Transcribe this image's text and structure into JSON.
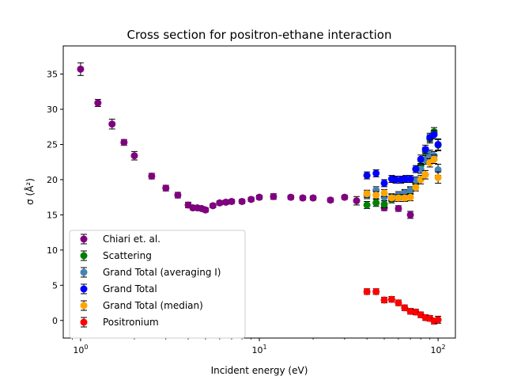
{
  "chart_data": {
    "type": "scatter",
    "title": "Cross section for positron-ethane interaction",
    "xlabel": "Incident energy (eV)",
    "ylabel": "σ  (Å²)",
    "xscale": "log",
    "xlim": [
      0.8,
      125
    ],
    "ylim": [
      -2.5,
      39
    ],
    "x_ticks": [
      {
        "value": 1,
        "base": "10",
        "exp": "0"
      },
      {
        "value": 10,
        "base": "10",
        "exp": "1"
      },
      {
        "value": 100,
        "base": "10",
        "exp": "2"
      }
    ],
    "y_ticks": [
      0,
      5,
      10,
      15,
      20,
      25,
      30,
      35
    ],
    "grid": false,
    "legend_position": "lower-left",
    "series": [
      {
        "name": "Chiari et. al.",
        "color": "#800080",
        "points": [
          {
            "x": 1.0,
            "y": 35.7,
            "err": 0.9
          },
          {
            "x": 1.25,
            "y": 30.9,
            "err": 0.5
          },
          {
            "x": 1.5,
            "y": 27.9,
            "err": 0.7
          },
          {
            "x": 1.75,
            "y": 25.3,
            "err": 0.4
          },
          {
            "x": 2.0,
            "y": 23.4,
            "err": 0.6
          },
          {
            "x": 2.5,
            "y": 20.5,
            "err": 0.4
          },
          {
            "x": 3.0,
            "y": 18.8,
            "err": 0.4
          },
          {
            "x": 3.5,
            "y": 17.8,
            "err": 0.4
          },
          {
            "x": 4.0,
            "y": 16.4,
            "err": 0.4
          },
          {
            "x": 4.25,
            "y": 16.0,
            "err": 0.3
          },
          {
            "x": 4.5,
            "y": 16.0,
            "err": 0.3
          },
          {
            "x": 4.75,
            "y": 15.9,
            "err": 0.3
          },
          {
            "x": 5.0,
            "y": 15.7,
            "err": 0.3
          },
          {
            "x": 5.5,
            "y": 16.3,
            "err": 0.3
          },
          {
            "x": 6.0,
            "y": 16.7,
            "err": 0.3
          },
          {
            "x": 6.5,
            "y": 16.8,
            "err": 0.3
          },
          {
            "x": 7.0,
            "y": 16.9,
            "err": 0.3
          },
          {
            "x": 8.0,
            "y": 16.9,
            "err": 0.3
          },
          {
            "x": 9.0,
            "y": 17.2,
            "err": 0.3
          },
          {
            "x": 10.0,
            "y": 17.5,
            "err": 0.3
          },
          {
            "x": 12.0,
            "y": 17.6,
            "err": 0.4
          },
          {
            "x": 15.0,
            "y": 17.5,
            "err": 0.3
          },
          {
            "x": 17.5,
            "y": 17.4,
            "err": 0.3
          },
          {
            "x": 20.0,
            "y": 17.4,
            "err": 0.3
          },
          {
            "x": 25.0,
            "y": 17.1,
            "err": 0.3
          },
          {
            "x": 30.0,
            "y": 17.5,
            "err": 0.3
          },
          {
            "x": 35.0,
            "y": 17.0,
            "err": 0.6
          },
          {
            "x": 50.0,
            "y": 16.0,
            "err": 0.4
          },
          {
            "x": 60.0,
            "y": 15.9,
            "err": 0.4
          },
          {
            "x": 70.0,
            "y": 15.0,
            "err": 0.5
          }
        ]
      },
      {
        "name": "Scattering",
        "color": "#008000",
        "points": [
          {
            "x": 40,
            "y": 16.4,
            "err": 0.5
          },
          {
            "x": 45,
            "y": 16.7,
            "err": 0.5
          },
          {
            "x": 50,
            "y": 16.5,
            "err": 0.5
          },
          {
            "x": 55,
            "y": 17.2,
            "err": 0.5
          },
          {
            "x": 60,
            "y": 17.6,
            "err": 0.5
          },
          {
            "x": 65,
            "y": 18.0,
            "err": 0.5
          },
          {
            "x": 70,
            "y": 18.4,
            "err": 0.5
          },
          {
            "x": 75,
            "y": 19.5,
            "err": 0.5
          },
          {
            "x": 80,
            "y": 22.0,
            "err": 0.6
          },
          {
            "x": 85,
            "y": 24.0,
            "err": 0.6
          },
          {
            "x": 90,
            "y": 25.8,
            "err": 0.6
          },
          {
            "x": 95,
            "y": 26.8,
            "err": 0.6
          },
          {
            "x": 100,
            "y": 24.9,
            "err": 0.8
          }
        ]
      },
      {
        "name": "Grand Total (averaging I)",
        "color": "#4682b4",
        "points": [
          {
            "x": 40,
            "y": 17.8,
            "err": 0.5
          },
          {
            "x": 45,
            "y": 18.5,
            "err": 0.5
          },
          {
            "x": 50,
            "y": 17.5,
            "err": 0.5
          },
          {
            "x": 55,
            "y": 17.5,
            "err": 0.5
          },
          {
            "x": 60,
            "y": 17.8,
            "err": 0.5
          },
          {
            "x": 65,
            "y": 18.1,
            "err": 0.5
          },
          {
            "x": 70,
            "y": 18.5,
            "err": 0.5
          },
          {
            "x": 75,
            "y": 19.9,
            "err": 0.5
          },
          {
            "x": 80,
            "y": 21.5,
            "err": 0.6
          },
          {
            "x": 85,
            "y": 22.8,
            "err": 0.6
          },
          {
            "x": 90,
            "y": 23.6,
            "err": 0.6
          },
          {
            "x": 95,
            "y": 23.4,
            "err": 0.6
          },
          {
            "x": 100,
            "y": 21.4,
            "err": 0.8
          }
        ]
      },
      {
        "name": "Grand Total",
        "color": "#0000ff",
        "points": [
          {
            "x": 40,
            "y": 20.6,
            "err": 0.5
          },
          {
            "x": 45,
            "y": 20.9,
            "err": 0.5
          },
          {
            "x": 50,
            "y": 19.5,
            "err": 0.5
          },
          {
            "x": 55,
            "y": 20.1,
            "err": 0.5
          },
          {
            "x": 58,
            "y": 20.0,
            "err": 0.5
          },
          {
            "x": 62,
            "y": 20.0,
            "err": 0.5
          },
          {
            "x": 66,
            "y": 20.1,
            "err": 0.5
          },
          {
            "x": 70,
            "y": 20.1,
            "err": 0.5
          },
          {
            "x": 75,
            "y": 21.5,
            "err": 0.5
          },
          {
            "x": 80,
            "y": 22.9,
            "err": 0.6
          },
          {
            "x": 85,
            "y": 24.3,
            "err": 0.6
          },
          {
            "x": 90,
            "y": 26.0,
            "err": 0.6
          },
          {
            "x": 95,
            "y": 26.4,
            "err": 0.6
          },
          {
            "x": 100,
            "y": 25.0,
            "err": 0.8
          }
        ]
      },
      {
        "name": "Grand Total (median)",
        "color": "#ffa500",
        "points": [
          {
            "x": 40,
            "y": 18.0,
            "err": 0.5
          },
          {
            "x": 45,
            "y": 17.8,
            "err": 0.5
          },
          {
            "x": 50,
            "y": 18.1,
            "err": 0.5
          },
          {
            "x": 55,
            "y": 17.4,
            "err": 0.5
          },
          {
            "x": 60,
            "y": 17.4,
            "err": 0.5
          },
          {
            "x": 65,
            "y": 17.4,
            "err": 0.5
          },
          {
            "x": 70,
            "y": 17.5,
            "err": 0.5
          },
          {
            "x": 75,
            "y": 18.9,
            "err": 0.5
          },
          {
            "x": 80,
            "y": 20.0,
            "err": 0.6
          },
          {
            "x": 85,
            "y": 20.7,
            "err": 0.6
          },
          {
            "x": 90,
            "y": 22.4,
            "err": 0.6
          },
          {
            "x": 95,
            "y": 22.9,
            "err": 0.6
          },
          {
            "x": 100,
            "y": 20.3,
            "err": 0.8
          }
        ]
      },
      {
        "name": "Positronium",
        "color": "#ff0000",
        "points": [
          {
            "x": 40,
            "y": 4.1,
            "err": 0.4
          },
          {
            "x": 45,
            "y": 4.1,
            "err": 0.4
          },
          {
            "x": 50,
            "y": 2.9,
            "err": 0.4
          },
          {
            "x": 55,
            "y": 3.0,
            "err": 0.4
          },
          {
            "x": 60,
            "y": 2.5,
            "err": 0.4
          },
          {
            "x": 65,
            "y": 1.8,
            "err": 0.4
          },
          {
            "x": 70,
            "y": 1.3,
            "err": 0.4
          },
          {
            "x": 75,
            "y": 1.2,
            "err": 0.4
          },
          {
            "x": 80,
            "y": 0.8,
            "err": 0.4
          },
          {
            "x": 85,
            "y": 0.4,
            "err": 0.4
          },
          {
            "x": 90,
            "y": 0.3,
            "err": 0.4
          },
          {
            "x": 95,
            "y": -0.1,
            "err": 0.4
          },
          {
            "x": 100,
            "y": 0.1,
            "err": 0.5
          }
        ]
      }
    ]
  }
}
